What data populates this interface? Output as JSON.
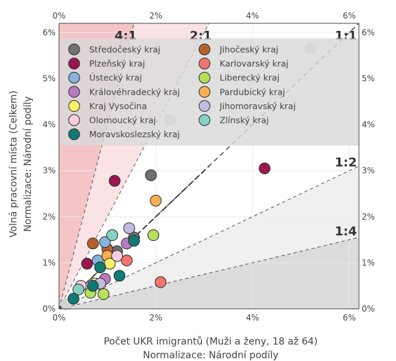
{
  "chart_data": {
    "type": "scatter",
    "xlabel": "Počet UKR imigrantů (Muži a ženy, 18 až 64)",
    "xlabel_sub": "Normalizace: Národní podíly",
    "ylabel": "Volná pracovní místa (Celkem)",
    "ylabel_sub": "Normalizace: Národní podíly",
    "xlim": [
      0,
      6.2
    ],
    "ylim": [
      0,
      6.2
    ],
    "x_ticks": [
      "0%",
      "2%",
      "4%",
      "6%"
    ],
    "y_ticks": [
      "0%",
      "1%",
      "2%",
      "3%",
      "4%",
      "5%",
      "6%"
    ],
    "x_tick_values": [
      0,
      2,
      4,
      6
    ],
    "y_tick_values": [
      0,
      1,
      2,
      3,
      4,
      5,
      6
    ],
    "ratio_labels": [
      {
        "text": "4:1",
        "slope": 4
      },
      {
        "text": "2:1",
        "slope": 2
      },
      {
        "text": "1:1",
        "slope": 1
      },
      {
        "text": "1:2",
        "slope": 0.5
      },
      {
        "text": "1:4",
        "slope": 0.25
      }
    ],
    "legend_position": "top",
    "series": [
      {
        "name": "Středočeský kraj",
        "color": "#707070",
        "points": [
          [
            1.9,
            2.9
          ],
          [
            1.55,
            1.55
          ],
          [
            1.2,
            1.25
          ]
        ]
      },
      {
        "name": "Jihočeský kraj",
        "color": "#b5612d",
        "points": [
          [
            0.7,
            1.42
          ],
          [
            1.0,
            1.3
          ]
        ]
      },
      {
        "name": "Plzeňský kraj",
        "color": "#9b1750",
        "points": [
          [
            4.25,
            3.05
          ],
          [
            1.15,
            2.78
          ],
          [
            0.58,
            0.98
          ]
        ]
      },
      {
        "name": "Karlovarský kraj",
        "color": "#f2756c",
        "points": [
          [
            2.1,
            0.58
          ],
          [
            1.4,
            1.05
          ]
        ]
      },
      {
        "name": "Ústecký kraj",
        "color": "#87b2dc",
        "points": [
          [
            0.95,
            1.45
          ],
          [
            0.8,
            1.05
          ]
        ]
      },
      {
        "name": "Liberecký kraj",
        "color": "#b6df5a",
        "points": [
          [
            1.95,
            1.6
          ],
          [
            0.65,
            0.35
          ],
          [
            0.92,
            0.32
          ]
        ]
      },
      {
        "name": "Královéhradecký kraj",
        "color": "#b97ac2",
        "points": [
          [
            1.4,
            1.42
          ],
          [
            0.95,
            0.65
          ]
        ]
      },
      {
        "name": "Pardubický kraj",
        "color": "#f7ae55",
        "points": [
          [
            2.0,
            2.35
          ],
          [
            1.0,
            1.15
          ]
        ]
      },
      {
        "name": "Kraj Vysočina",
        "color": "#fdf067",
        "points": [
          [
            1.05,
            0.98
          ],
          [
            0.75,
            0.55
          ]
        ]
      },
      {
        "name": "Jihomoravský kraj",
        "color": "#c3bce0",
        "points": [
          [
            1.45,
            1.75
          ],
          [
            0.85,
            0.55
          ]
        ]
      },
      {
        "name": "Olomoucký kraj",
        "color": "#fcccdf",
        "points": [
          [
            1.2,
            1.15
          ],
          [
            0.45,
            0.5
          ]
        ]
      },
      {
        "name": "Zlínský kraj",
        "color": "#86d2c2",
        "points": [
          [
            1.1,
            1.6
          ],
          [
            0.4,
            0.42
          ]
        ]
      },
      {
        "name": "Moravskoslezský kraj",
        "color": "#127a74",
        "points": [
          [
            1.55,
            1.48
          ],
          [
            0.85,
            0.9
          ],
          [
            1.25,
            0.72
          ],
          [
            0.7,
            0.5
          ],
          [
            0.3,
            0.22
          ]
        ]
      }
    ],
    "gray_markers": [
      [
        5.2,
        5.65
      ],
      [
        2.3,
        4.1
      ],
      [
        0.15,
        0.1
      ]
    ]
  }
}
